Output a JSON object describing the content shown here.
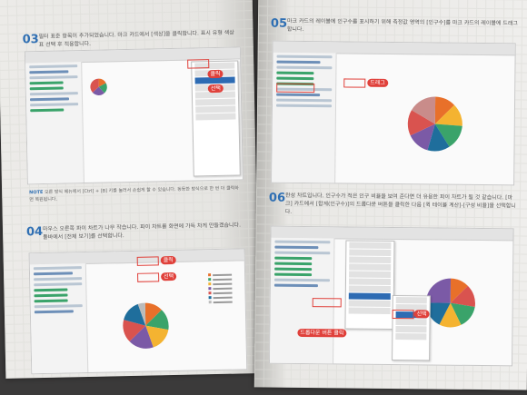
{
  "left_page": {
    "step_03": {
      "number": "03",
      "text": "필터 표준 항목이 추가되었습니다. 마크 카드에서 [색상]을 클릭합니다. 표시 유형 색상표 선택 후 적용합니다."
    },
    "note": {
      "label": "NOTE",
      "text": "오른 방식 메뉴에서 [Ctrl] + [B] 키를 눌러서 손쉽게 할 수 있습니다. 동등한 방식으로 한 번 더 클릭하면 복원됩니다."
    },
    "step_04": {
      "number": "04",
      "text": "마우스 오른쪽 파이 차트가 나무 작습니다. 파이 차트를 화면에 가득 차게 만들겠습니다. 툴바에서 [전체 보기]를 선택합니다."
    },
    "callouts": {
      "click_1": "클릭",
      "select_2": "선택",
      "click_a": "클릭",
      "select_b": "선택"
    }
  },
  "right_page": {
    "step_05": {
      "number": "05",
      "text": "마크 카드의 레이블에 인구수를 표시하기 위해 측정값 영역의 [인구수]를 마크 카드의 레이블에 드래그합니다."
    },
    "step_06": {
      "number": "06",
      "text": "완성 차트입니다. 인구수가 적은 인구 비율을 보여 준다면 더 유용한 파이 차트가 될 것 같습니다. [마크] 카드에서 [합계(인구수)]의 드롭다운 버튼을 클릭한 다음 [퀵 테이블 계산]-[구성 비율]을 선택합니다."
    },
    "callouts": {
      "drag_1": "드래그",
      "dropdown_click": "드롭다운 버튼 클릭",
      "select_2": "선택"
    }
  },
  "colors": {
    "accent_blue": "#2f6fb3",
    "callout_red": "#e0413b",
    "pie": [
      "#e8702a",
      "#f4b331",
      "#3aa36a",
      "#1f6e9c",
      "#7b5aa6",
      "#d9534f",
      "#bbbbbb",
      "#4a8fd1"
    ]
  }
}
